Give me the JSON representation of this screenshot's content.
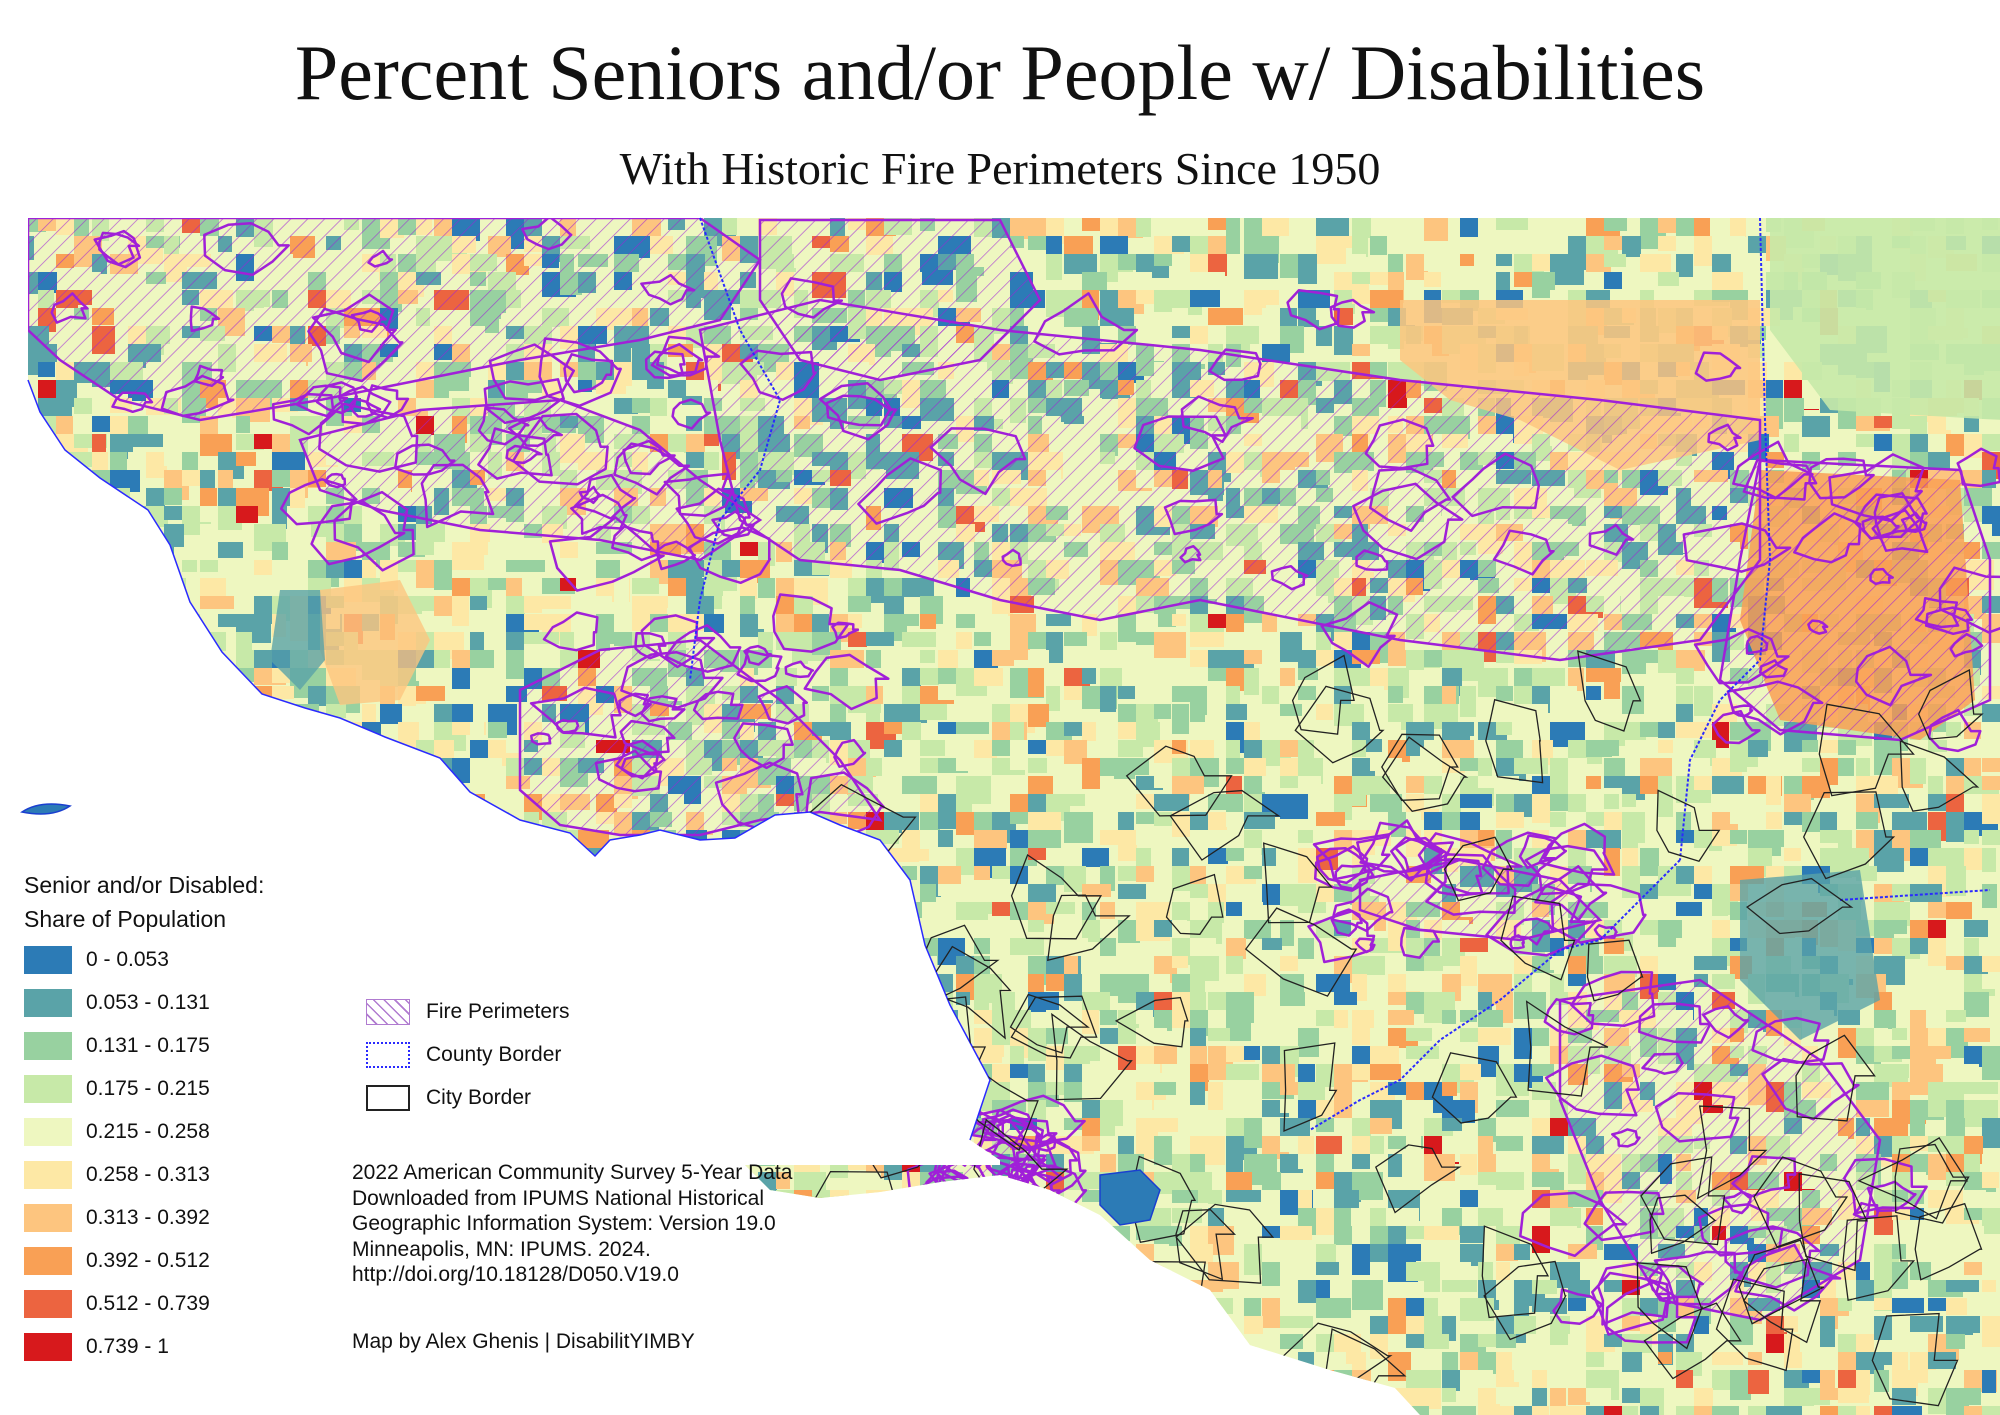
{
  "title": "Percent Seniors and/or People w/ Disabilities",
  "subtitle": "With Historic Fire Perimeters Since 1950",
  "legend": {
    "title_line1": "Senior and/or Disabled:",
    "title_line2": "Share of Population",
    "classes": [
      {
        "label": "0 - 0.053",
        "color": "#2c7bb6"
      },
      {
        "label": "0.053 - 0.131",
        "color": "#5aa3a8"
      },
      {
        "label": "0.131 - 0.175",
        "color": "#98d1a0"
      },
      {
        "label": "0.175 - 0.215",
        "color": "#c7e9a8"
      },
      {
        "label": "0.215 - 0.258",
        "color": "#eef7c0"
      },
      {
        "label": "0.258 - 0.313",
        "color": "#fde8a5"
      },
      {
        "label": "0.313 - 0.392",
        "color": "#fdc57f"
      },
      {
        "label": "0.392 - 0.512",
        "color": "#f9a055"
      },
      {
        "label": "0.512 - 0.739",
        "color": "#ec6440"
      },
      {
        "label": "0.739 - 1",
        "color": "#d7191c"
      }
    ]
  },
  "overlay_legend": {
    "fire": "Fire Perimeters",
    "county": "County Border",
    "city": "City Border",
    "fire_color": "#a020d8",
    "county_color": "#2a2aff",
    "city_color": "#222222"
  },
  "credits": {
    "line1": "2022 American Community Survey 5-Year Data",
    "line2": "Downloaded from IPUMS National Historical",
    "line3": "Geographic Information System: Version 19.0",
    "line4": "Minneapolis, MN: IPUMS. 2024.",
    "line5": "http://doi.org/10.18128/D050.V19.0",
    "byline": "Map by Alex Ghenis | DisabilitYIMBY"
  }
}
